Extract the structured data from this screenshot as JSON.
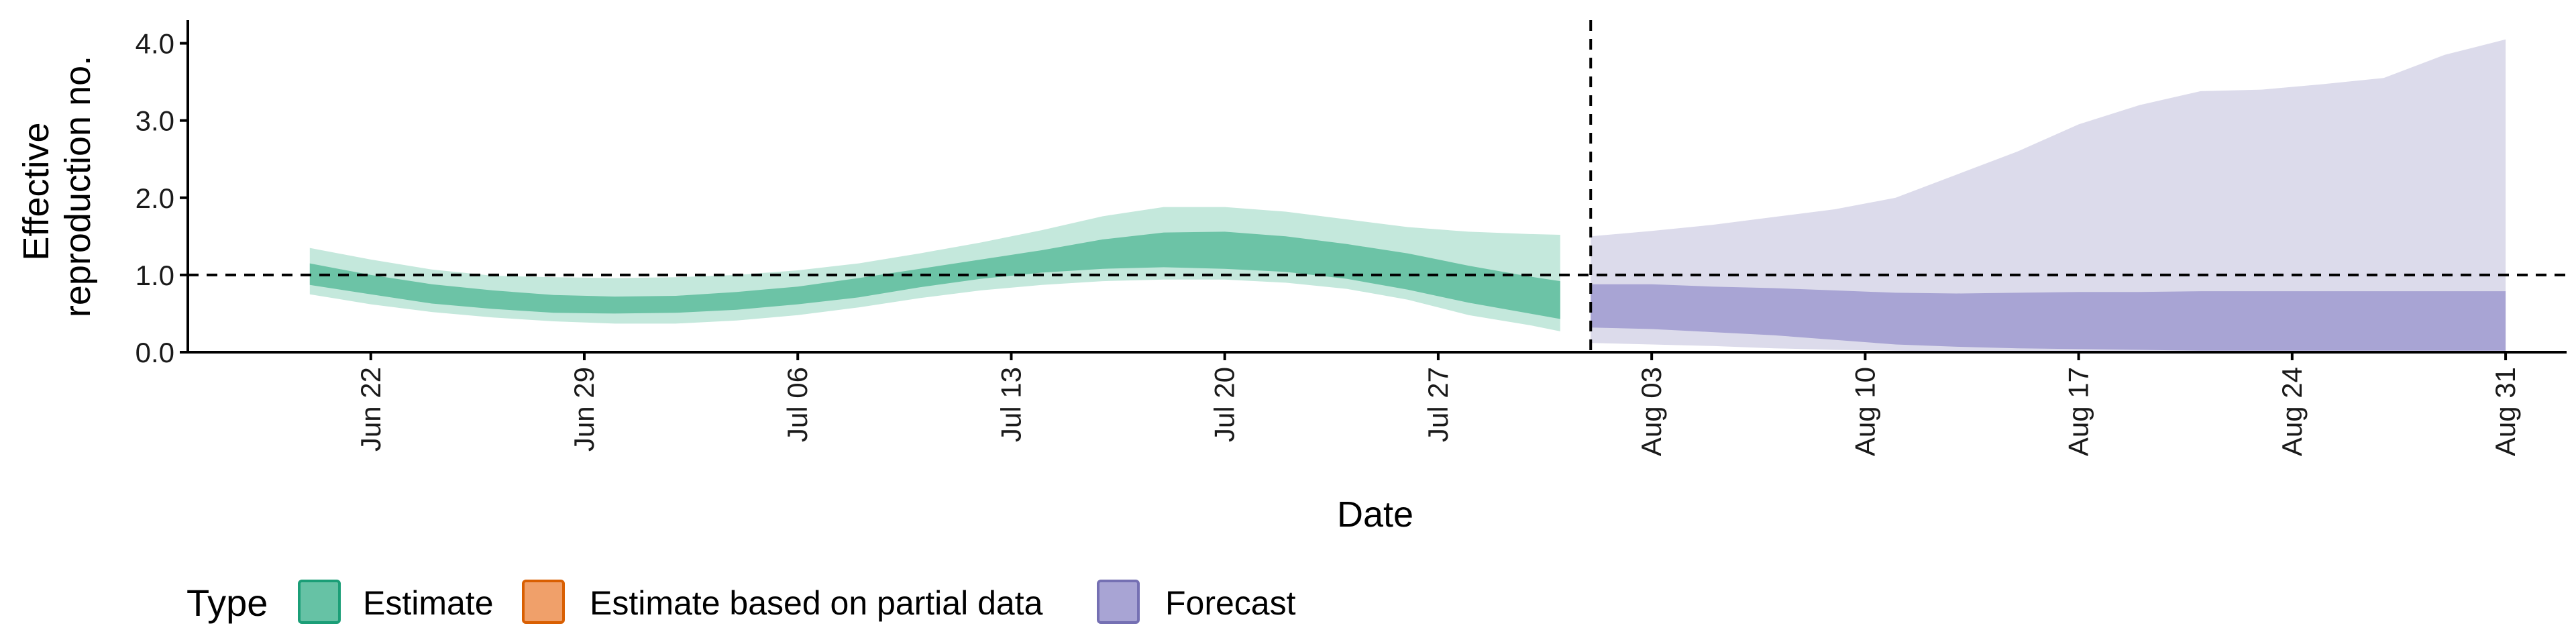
{
  "chart_data": {
    "type": "area",
    "xlabel": "Date",
    "ylabel": "Effective reproduction no.",
    "ylabel_lines": [
      "Effective",
      "reproduction no."
    ],
    "ylim": [
      0,
      4.3
    ],
    "yticks": [
      {
        "value": 0,
        "label": "0.0"
      },
      {
        "value": 1,
        "label": "1.0"
      },
      {
        "value": 2,
        "label": "2.0"
      },
      {
        "value": 3,
        "label": "3.0"
      },
      {
        "value": 4,
        "label": "4.0"
      }
    ],
    "xlim": [
      "2022-06-16",
      "2022-09-02"
    ],
    "xticks": [
      {
        "date": "2022-06-22",
        "label": "Jun 22"
      },
      {
        "date": "2022-06-29",
        "label": "Jun 29"
      },
      {
        "date": "2022-07-06",
        "label": "Jul 06"
      },
      {
        "date": "2022-07-13",
        "label": "Jul 13"
      },
      {
        "date": "2022-07-20",
        "label": "Jul 20"
      },
      {
        "date": "2022-07-27",
        "label": "Jul 27"
      },
      {
        "date": "2022-08-03",
        "label": "Aug 03"
      },
      {
        "date": "2022-08-10",
        "label": "Aug 10"
      },
      {
        "date": "2022-08-17",
        "label": "Aug 17"
      },
      {
        "date": "2022-08-24",
        "label": "Aug 24"
      },
      {
        "date": "2022-08-31",
        "label": "Aug 31"
      }
    ],
    "reference_lines": {
      "horizontal_y": 1.0,
      "vertical_date": "2022-08-01"
    },
    "grid": false,
    "legend": {
      "position": "bottom",
      "title": "Type",
      "entries": [
        {
          "label": "Estimate",
          "fill": "#66c2a5",
          "stroke": "#1b9e77"
        },
        {
          "label": "Estimate based on partial data",
          "fill": "#f0a06a",
          "stroke": "#d95f02"
        },
        {
          "label": "Forecast",
          "fill": "#a8a4d4",
          "stroke": "#7570b3"
        }
      ]
    },
    "series": [
      {
        "name": "Estimate",
        "color_outer": "#c4e8dc",
        "color_inner": "#6cc3a6",
        "x": [
          "2022-06-20",
          "2022-06-22",
          "2022-06-24",
          "2022-06-26",
          "2022-06-28",
          "2022-06-30",
          "2022-07-02",
          "2022-07-04",
          "2022-07-06",
          "2022-07-08",
          "2022-07-10",
          "2022-07-12",
          "2022-07-14",
          "2022-07-16",
          "2022-07-18",
          "2022-07-20",
          "2022-07-22",
          "2022-07-24",
          "2022-07-26",
          "2022-07-28",
          "2022-07-30",
          "2022-07-31"
        ],
        "outer_lower": [
          0.75,
          0.62,
          0.52,
          0.45,
          0.4,
          0.37,
          0.37,
          0.41,
          0.48,
          0.58,
          0.7,
          0.8,
          0.87,
          0.92,
          0.94,
          0.94,
          0.9,
          0.82,
          0.68,
          0.48,
          0.35,
          0.27
        ],
        "outer_upper": [
          1.35,
          1.2,
          1.07,
          0.99,
          0.97,
          0.96,
          0.97,
          1.0,
          1.06,
          1.15,
          1.28,
          1.42,
          1.58,
          1.76,
          1.88,
          1.88,
          1.82,
          1.72,
          1.62,
          1.56,
          1.53,
          1.52
        ],
        "inner_lower": [
          0.87,
          0.75,
          0.63,
          0.56,
          0.51,
          0.5,
          0.51,
          0.55,
          0.62,
          0.71,
          0.84,
          0.95,
          1.03,
          1.08,
          1.1,
          1.08,
          1.04,
          0.95,
          0.81,
          0.64,
          0.5,
          0.43
        ],
        "inner_upper": [
          1.15,
          1.0,
          0.88,
          0.8,
          0.74,
          0.72,
          0.73,
          0.78,
          0.85,
          0.96,
          1.08,
          1.2,
          1.32,
          1.46,
          1.55,
          1.56,
          1.5,
          1.4,
          1.28,
          1.12,
          0.98,
          0.92
        ]
      },
      {
        "name": "Forecast",
        "color_outer": "#dcdbeb",
        "color_inner": "#a8a4d4",
        "x": [
          "2022-08-01",
          "2022-08-03",
          "2022-08-05",
          "2022-08-07",
          "2022-08-09",
          "2022-08-11",
          "2022-08-13",
          "2022-08-15",
          "2022-08-17",
          "2022-08-19",
          "2022-08-21",
          "2022-08-23",
          "2022-08-25",
          "2022-08-27",
          "2022-08-29",
          "2022-08-31"
        ],
        "outer_lower": [
          0.12,
          0.1,
          0.08,
          0.05,
          0.03,
          0.02,
          0.01,
          0.01,
          0.01,
          0.01,
          0.01,
          0.01,
          0.01,
          0.01,
          0.01,
          0.01
        ],
        "outer_upper": [
          1.5,
          1.57,
          1.65,
          1.75,
          1.85,
          2.0,
          2.3,
          2.6,
          2.95,
          3.2,
          3.38,
          3.4,
          3.47,
          3.55,
          3.85,
          4.05
        ],
        "inner_lower": [
          0.32,
          0.3,
          0.26,
          0.22,
          0.16,
          0.1,
          0.07,
          0.05,
          0.04,
          0.03,
          0.02,
          0.02,
          0.02,
          0.02,
          0.02,
          0.02
        ],
        "inner_upper": [
          0.88,
          0.88,
          0.85,
          0.83,
          0.8,
          0.77,
          0.76,
          0.77,
          0.78,
          0.78,
          0.79,
          0.79,
          0.79,
          0.79,
          0.79,
          0.79
        ]
      }
    ]
  }
}
